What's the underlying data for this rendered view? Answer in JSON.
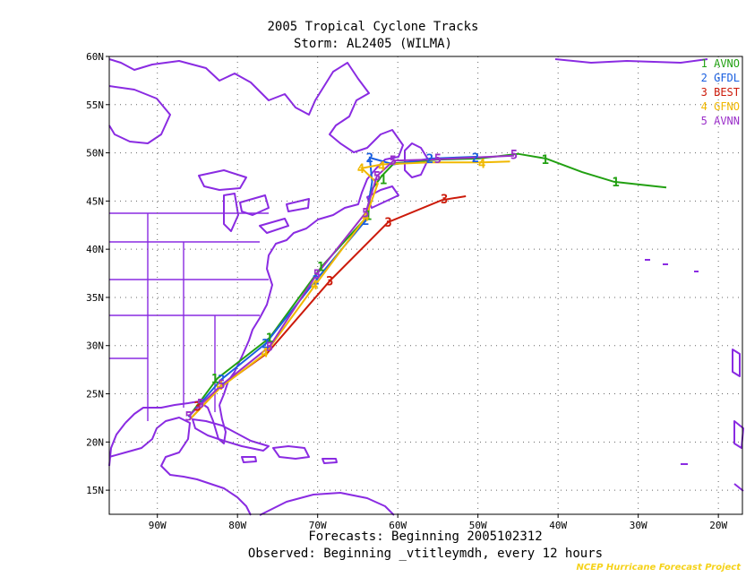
{
  "title": "2005 Tropical Cyclone Tracks",
  "storm": "Storm: AL2405 (WILMA)",
  "footer": {
    "forecasts": "Forecasts: Beginning 2005102312",
    "observed": "Observed: Beginning _vtitleymdh, every 12 hours",
    "credit": "NCEP Hurricane Forecast Project"
  },
  "chart_data": {
    "type": "map-track",
    "xlim": [
      -96,
      -17
    ],
    "ylim": [
      12.5,
      60
    ],
    "lat_ticks": [
      {
        "v": 60,
        "l": "60N"
      },
      {
        "v": 55,
        "l": "55N"
      },
      {
        "v": 50,
        "l": "50N"
      },
      {
        "v": 45,
        "l": "45N"
      },
      {
        "v": 40,
        "l": "40N"
      },
      {
        "v": 35,
        "l": "35N"
      },
      {
        "v": 30,
        "l": "30N"
      },
      {
        "v": 25,
        "l": "25N"
      },
      {
        "v": 20,
        "l": "20N"
      },
      {
        "v": 15,
        "l": "15N"
      }
    ],
    "lon_ticks": [
      {
        "v": -90,
        "l": "90W"
      },
      {
        "v": -80,
        "l": "80W"
      },
      {
        "v": -70,
        "l": "70W"
      },
      {
        "v": -60,
        "l": "60W"
      },
      {
        "v": -50,
        "l": "50W"
      },
      {
        "v": -40,
        "l": "40W"
      },
      {
        "v": -30,
        "l": "30W"
      },
      {
        "v": -20,
        "l": "20W"
      }
    ],
    "land_color": "#8a2be2",
    "series": [
      {
        "name": "AVNO",
        "id": "1",
        "color": "#22a012",
        "points": [
          [
            -86.1,
            22.6
          ],
          [
            -82.5,
            26.6
          ],
          [
            -76.0,
            30.8
          ],
          [
            -69.5,
            38.2
          ],
          [
            -63.7,
            43.5
          ],
          [
            -63.4,
            46.0
          ],
          [
            -62.0,
            47.6
          ],
          [
            -60.5,
            48.9
          ],
          [
            -55.0,
            49.3
          ],
          [
            -50.0,
            49.4
          ],
          [
            -45.0,
            49.9
          ],
          [
            -41.5,
            49.4
          ],
          [
            -37.0,
            48.0
          ],
          [
            -33.0,
            47.0
          ],
          [
            -26.5,
            46.4
          ]
        ],
        "markers": [
          [
            -82.8,
            26.6
          ],
          [
            -76.0,
            30.8
          ],
          [
            -69.6,
            38.2
          ],
          [
            -63.7,
            43.5
          ],
          [
            -61.8,
            47.2
          ],
          [
            -41.6,
            49.3
          ],
          [
            -32.8,
            47.0
          ]
        ]
      },
      {
        "name": "GFDL",
        "id": "2",
        "color": "#1a5fe0",
        "points": [
          [
            -86.1,
            22.6
          ],
          [
            -82.0,
            26.5
          ],
          [
            -76.5,
            30.2
          ],
          [
            -70.2,
            36.8
          ],
          [
            -64.0,
            43.0
          ],
          [
            -63.2,
            47.0
          ],
          [
            -63.5,
            49.5
          ],
          [
            -60.5,
            48.8
          ],
          [
            -56.0,
            49.4
          ],
          [
            -50.0,
            49.6
          ]
        ],
        "markers": [
          [
            -82.0,
            26.5
          ],
          [
            -76.5,
            30.2
          ],
          [
            -70.2,
            36.8
          ],
          [
            -64.0,
            43.0
          ],
          [
            -63.5,
            49.5
          ],
          [
            -56.0,
            49.4
          ],
          [
            -50.3,
            49.5
          ]
        ]
      },
      {
        "name": "BEST",
        "id": "3",
        "color": "#cc1a0a",
        "points": [
          [
            -86.0,
            22.3
          ],
          [
            -82.0,
            25.8
          ],
          [
            -76.3,
            29.2
          ],
          [
            -68.5,
            36.7
          ],
          [
            -61.2,
            42.8
          ],
          [
            -54.5,
            45.1
          ],
          [
            -51.5,
            45.5
          ]
        ],
        "markers": [
          [
            -85.0,
            23.7
          ],
          [
            -68.5,
            36.7
          ],
          [
            -61.2,
            42.8
          ],
          [
            -54.2,
            45.2
          ]
        ]
      },
      {
        "name": "GFNO",
        "id": "4",
        "color": "#f0b800",
        "points": [
          [
            -86.0,
            22.3
          ],
          [
            -82.2,
            25.6
          ],
          [
            -76.5,
            29.2
          ],
          [
            -70.3,
            36.3
          ],
          [
            -64.0,
            43.3
          ],
          [
            -62.5,
            46.8
          ],
          [
            -64.5,
            48.4
          ],
          [
            -62.0,
            48.8
          ],
          [
            -56.0,
            49.0
          ],
          [
            -49.5,
            49.0
          ],
          [
            -46.0,
            49.1
          ]
        ],
        "markers": [
          [
            -82.2,
            25.9
          ],
          [
            -76.6,
            29.3
          ],
          [
            -70.4,
            36.3
          ],
          [
            -64.0,
            43.4
          ],
          [
            -64.6,
            48.4
          ],
          [
            -62.0,
            48.6
          ],
          [
            -49.5,
            48.9
          ]
        ]
      },
      {
        "name": "AVNN",
        "id": "5",
        "color": "#9b2fc9",
        "points": [
          [
            -86.1,
            22.7
          ],
          [
            -82.0,
            25.9
          ],
          [
            -76.0,
            29.9
          ],
          [
            -70.1,
            37.4
          ],
          [
            -64.0,
            43.8
          ],
          [
            -62.6,
            47.6
          ],
          [
            -60.5,
            49.2
          ],
          [
            -56.0,
            49.3
          ],
          [
            -51.0,
            49.5
          ],
          [
            -45.5,
            49.7
          ]
        ],
        "markers": [
          [
            -86.1,
            22.7
          ],
          [
            -84.6,
            24.0
          ],
          [
            -82.0,
            26.0
          ],
          [
            -76.0,
            29.9
          ],
          [
            -70.1,
            37.4
          ],
          [
            -64.0,
            43.8
          ],
          [
            -62.6,
            47.6
          ],
          [
            -60.6,
            49.2
          ],
          [
            -55.0,
            49.4
          ],
          [
            -45.5,
            49.8
          ]
        ]
      }
    ],
    "legend_position": "top-right"
  }
}
